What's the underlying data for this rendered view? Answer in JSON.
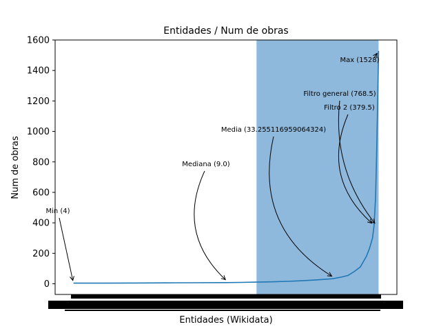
{
  "chart_data": {
    "type": "line",
    "title": "Entidades / Num de obras",
    "xlabel": "Entidades (Wikidata)",
    "ylabel": "Num de obras",
    "ylim": [
      -70,
      1600
    ],
    "xlim": [
      -0.06,
      1.06
    ],
    "y_ticks": [
      0,
      200,
      400,
      600,
      800,
      1000,
      1200,
      1400,
      1600
    ],
    "x_tick_labels_note": "",
    "grid": false,
    "line_color": "#1f77b4",
    "highlight_color": "#8fb9dc",
    "highlight_span": [
      0.6,
      1.0
    ],
    "series": [
      {
        "x": [
          0.0,
          0.1,
          0.2,
          0.3,
          0.4,
          0.5,
          0.55,
          0.6,
          0.65,
          0.7,
          0.75,
          0.8,
          0.85,
          0.88,
          0.9,
          0.92,
          0.94,
          0.96,
          0.97,
          0.98,
          0.985,
          0.99,
          0.993,
          0.996,
          1.0
        ],
        "y": [
          4,
          4,
          5,
          6,
          7,
          8,
          9,
          11,
          13,
          16,
          20,
          26,
          33,
          45,
          55,
          80,
          110,
          180,
          230,
          300,
          380,
          560,
          800,
          1100,
          1528
        ]
      }
    ],
    "annotations": [
      {
        "text": "Min (4)",
        "x": 0.0,
        "y": 4
      },
      {
        "text": "Mediana (9.0)",
        "x": 0.5,
        "y": 9
      },
      {
        "text": "Media (33.255116959064324)",
        "x": 0.85,
        "y": 33
      },
      {
        "text": "Filtro general (768.5)",
        "x": 0.99,
        "y": 380
      },
      {
        "text": "Filtro 2 (379.5)",
        "x": 0.98,
        "y": 380
      },
      {
        "text": "Max (1528)",
        "x": 1.0,
        "y": 1528
      }
    ]
  }
}
